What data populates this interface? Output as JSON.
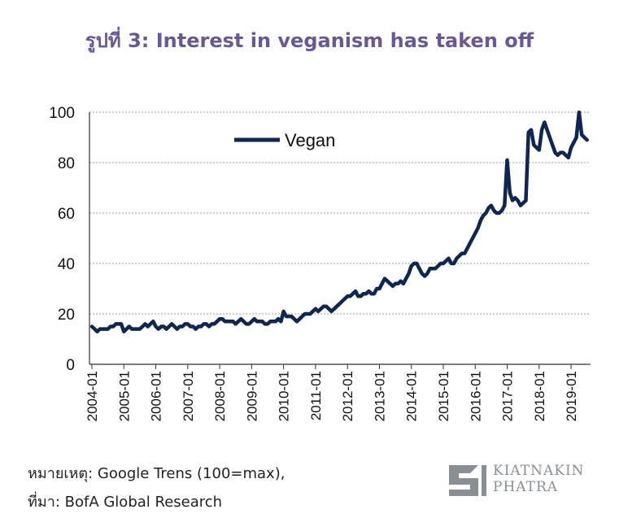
{
  "title": "รูปที่ 3: Interest in veganism has taken off",
  "notes": {
    "remark": "หมายเหตุ: Google Trens (100=max),",
    "source": "ที่มา: BofA Global Research"
  },
  "logo": {
    "line1": "KIATNAKIN",
    "line2": "PHATRA",
    "icon": "kiatnakin-phatra-logo-icon",
    "color": "#8a8f96"
  },
  "chart_data": {
    "type": "line",
    "title": "",
    "xlabel": "",
    "ylabel": "",
    "ylim": [
      0,
      100
    ],
    "yticks": [
      "0",
      "20",
      "40",
      "60",
      "80",
      "100"
    ],
    "xticks": [
      "2004-01",
      "2005-01",
      "2006-01",
      "2007-01",
      "2008-01",
      "2009-01",
      "2010-01",
      "2011-01",
      "2012-01",
      "2013-01",
      "2014-01",
      "2015-01",
      "2016-01",
      "2017-01",
      "2018-01",
      "2019-01"
    ],
    "grid": "horizontal dashed",
    "legend_position": "top-left",
    "series": [
      {
        "name": "Vegan",
        "color": "#0f2650",
        "x_start": "2004-01",
        "frequency": "monthly",
        "values": [
          15,
          14,
          13,
          14,
          14,
          14,
          14,
          15,
          15,
          16,
          16,
          16,
          13,
          14,
          15,
          14,
          14,
          14,
          14,
          15,
          16,
          15,
          16,
          17,
          15,
          14,
          15,
          15,
          14,
          15,
          16,
          15,
          14,
          15,
          15,
          16,
          16,
          15,
          15,
          14,
          15,
          15,
          16,
          16,
          15,
          16,
          16,
          17,
          18,
          18,
          17,
          17,
          17,
          17,
          16,
          17,
          18,
          17,
          16,
          16,
          17,
          18,
          17,
          17,
          17,
          16,
          16,
          17,
          17,
          17,
          18,
          17,
          21,
          19,
          19,
          19,
          18,
          17,
          18,
          19,
          20,
          20,
          20,
          21,
          22,
          21,
          22,
          23,
          23,
          22,
          21,
          22,
          23,
          24,
          25,
          26,
          27,
          27,
          28,
          29,
          27,
          27,
          28,
          28,
          29,
          28,
          28,
          30,
          30,
          32,
          34,
          33,
          32,
          31,
          32,
          32,
          33,
          32,
          34,
          36,
          39,
          40,
          40,
          38,
          36,
          35,
          36,
          38,
          38,
          38,
          39,
          40,
          40,
          41,
          42,
          40,
          40,
          42,
          43,
          44,
          44,
          46,
          48,
          50,
          52,
          54,
          57,
          59,
          60,
          62,
          63,
          61,
          60,
          60,
          61,
          63,
          81,
          68,
          65,
          66,
          65,
          63,
          64,
          65,
          92,
          93,
          87,
          86,
          85,
          93,
          96,
          93,
          90,
          87,
          84,
          83,
          84,
          84,
          83,
          82,
          86,
          88,
          90,
          100,
          91,
          90,
          89
        ]
      }
    ]
  }
}
